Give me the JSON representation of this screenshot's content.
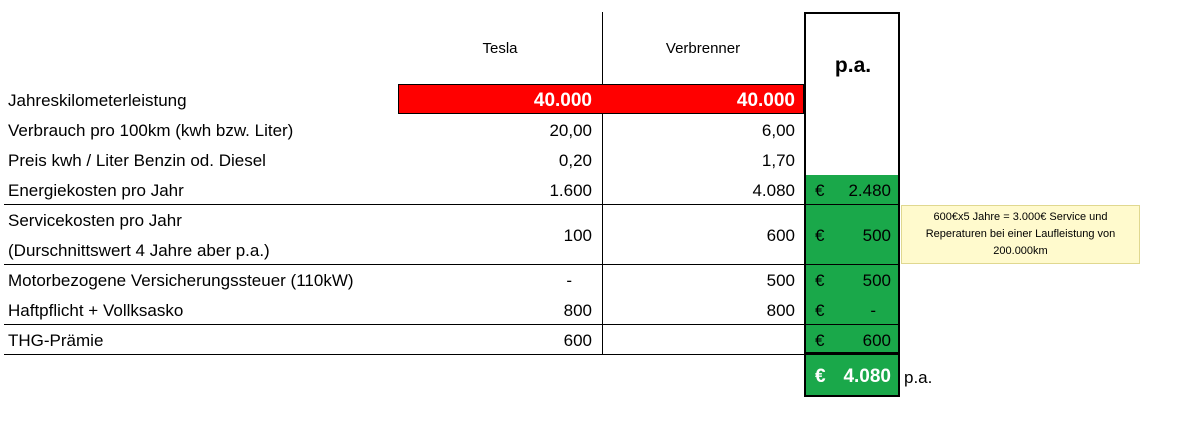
{
  "headers": {
    "tesla": "Tesla",
    "verbrenner": "Verbrenner",
    "pa": "p.a."
  },
  "rows": [
    {
      "label": "Jahreskilometerleistung",
      "tesla": "40.000",
      "verbrenner": "40.000",
      "cur": "",
      "pa": ""
    },
    {
      "label": "Verbrauch pro 100km (kwh bzw. Liter)",
      "tesla": "20,00",
      "verbrenner": "6,00",
      "cur": "",
      "pa": ""
    },
    {
      "label": "Preis kwh / Liter Benzin od. Diesel",
      "tesla": "0,20",
      "verbrenner": "1,70",
      "cur": "",
      "pa": ""
    },
    {
      "label": "Energiekosten pro Jahr",
      "tesla": "1.600",
      "verbrenner": "4.080",
      "cur": "€",
      "pa": "2.480"
    },
    {
      "label": "Servicekosten pro Jahr",
      "label2": "(Durschnittswert 4 Jahre aber p.a.)",
      "tesla": "100",
      "verbrenner": "600",
      "cur": "€",
      "pa": "500"
    },
    {
      "label": "Motorbezogene Versicherungssteuer (110kW)",
      "tesla": "-",
      "verbrenner": "500",
      "cur": "€",
      "pa": "500"
    },
    {
      "label": "Haftpflicht + Vollksasko",
      "tesla": "800",
      "verbrenner": "800",
      "cur": "€",
      "pa": "-"
    },
    {
      "label": "THG-Prämie",
      "tesla": "600",
      "verbrenner": "",
      "cur": "€",
      "pa": "600"
    }
  ],
  "total": {
    "cur": "€",
    "value": "4.080",
    "suffix": "p.a."
  },
  "note": {
    "line1": "600€x5 Jahre = 3.000€ Service und",
    "line2": "Reperaturen bei einer Laufleistung von",
    "line3": "200.000km"
  },
  "colors": {
    "highlight_red": "#ff0000",
    "highlight_green": "#1aa84a",
    "note_bg": "#fffacd"
  }
}
